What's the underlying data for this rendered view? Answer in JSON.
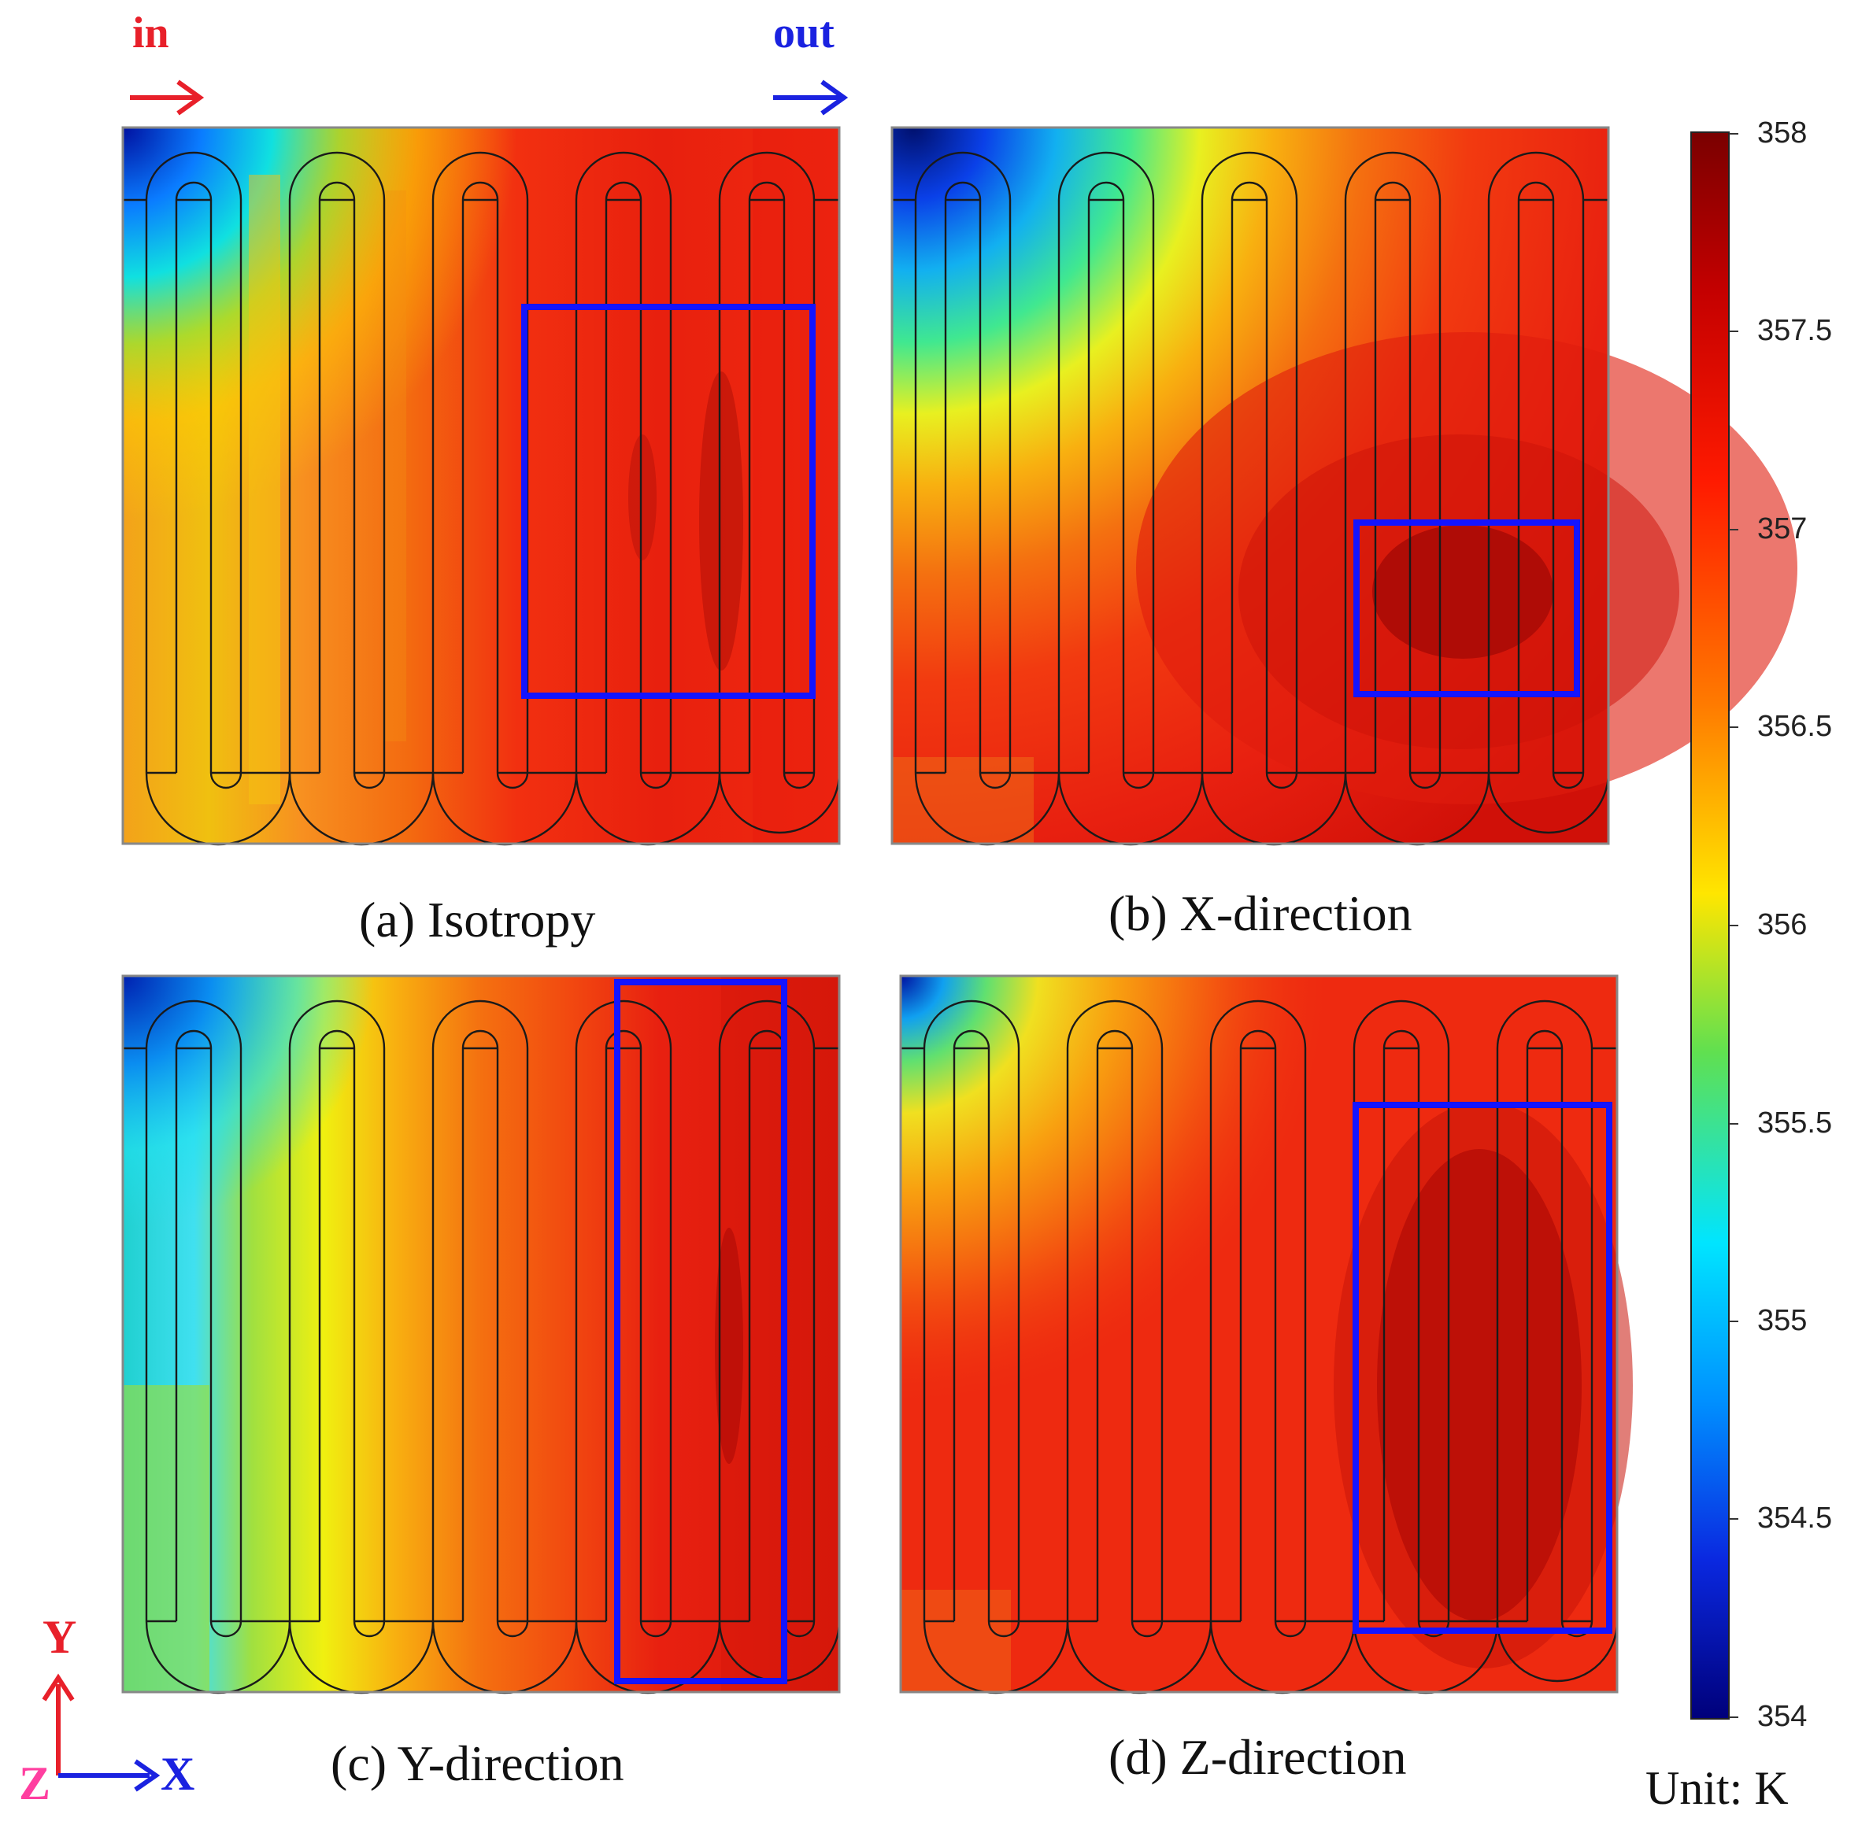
{
  "flow": {
    "inlet_label": "in",
    "outlet_label": "out",
    "inlet_color": "#e8202a",
    "outlet_color": "#1a22e0"
  },
  "colorbar": {
    "unit_text": "Unit: K",
    "min": 354,
    "max": 358,
    "ticks": [
      "358",
      "357.5",
      "357",
      "356.5",
      "356",
      "355.5",
      "355",
      "354.5",
      "354"
    ],
    "gradient_stops": [
      "#7a0000",
      "#c40000",
      "#ff1a00",
      "#ff6a00",
      "#ffae00",
      "#ffff00",
      "#6be34a",
      "#00e5ff",
      "#0090ff",
      "#0a28e0",
      "#00007a"
    ]
  },
  "axes": {
    "y": "Y",
    "x": "X",
    "z": "Z",
    "y_color": "#e8202a",
    "x_color": "#1a22e0",
    "z_color": "#ff3fa0"
  },
  "panels": [
    {
      "caption": "(a) Isotropy"
    },
    {
      "caption": "(b) X-direction"
    },
    {
      "caption": "(c) Y-direction"
    },
    {
      "caption": "(d) Z-direction"
    }
  ],
  "highlight_color": "#1414ff",
  "channel_line_color": "#1a1a1a"
}
